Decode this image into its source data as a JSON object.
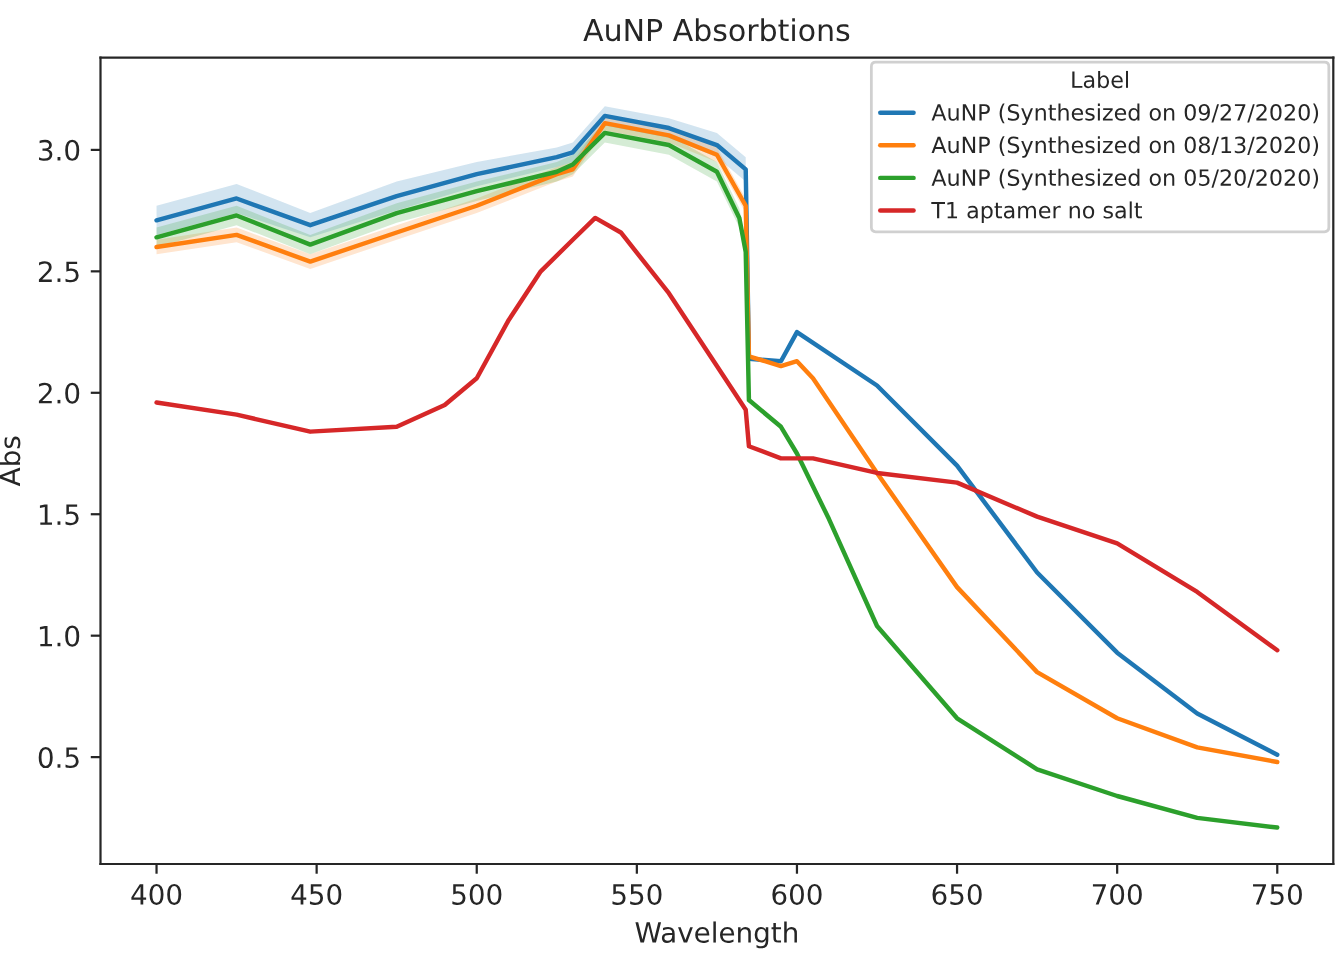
{
  "chart_data": {
    "type": "line",
    "title": "AuNP Absorbtions",
    "xlabel": "Wavelength",
    "ylabel": "Abs",
    "legend_title": "Label",
    "legend": "top right",
    "grid": false,
    "xlim": [
      382.5,
      767.5
    ],
    "xticks": [
      400,
      450,
      500,
      550,
      600,
      650,
      700,
      750
    ],
    "ylim": [
      0.06,
      3.38
    ],
    "yticks": [
      0.5,
      {
        "value": 1,
        "label": "1.0"
      },
      1.5,
      {
        "value": 2,
        "label": "2.0"
      },
      2.5,
      {
        "value": 3,
        "label": "3.0"
      }
    ],
    "series": [
      {
        "name": "AuNP (Synthesized on 09/27/2020)",
        "color": "#1f77b4",
        "x": [
          400,
          425,
          448,
          475,
          500,
          525,
          530,
          540,
          560,
          575,
          584,
          585,
          595,
          600,
          625,
          650,
          675,
          700,
          725,
          750
        ],
        "values": [
          2.71,
          2.8,
          2.69,
          2.81,
          2.9,
          2.97,
          2.99,
          3.14,
          3.09,
          3.02,
          2.92,
          2.14,
          2.13,
          2.25,
          2.03,
          1.7,
          1.26,
          0.93,
          0.68,
          0.51
        ],
        "lower": [
          2.65,
          2.74,
          2.64,
          2.75,
          2.85,
          2.93,
          2.95,
          3.1,
          3.05,
          2.97,
          2.87,
          null,
          null,
          null,
          null,
          null,
          null,
          null,
          null,
          null
        ],
        "upper": [
          2.77,
          2.86,
          2.74,
          2.87,
          2.95,
          3.01,
          3.03,
          3.18,
          3.13,
          3.07,
          2.97,
          null,
          null,
          null,
          null,
          null,
          null,
          null,
          null,
          null
        ]
      },
      {
        "name": "AuNP (Synthesized on 08/13/2020)",
        "color": "#ff7f0e",
        "x": [
          400,
          425,
          448,
          475,
          500,
          525,
          530,
          540,
          560,
          575,
          584,
          585,
          590,
          595,
          600,
          605,
          625,
          650,
          675,
          700,
          725,
          750
        ],
        "values": [
          2.6,
          2.65,
          2.54,
          2.66,
          2.77,
          2.9,
          2.92,
          3.11,
          3.06,
          2.98,
          2.77,
          2.15,
          2.13,
          2.11,
          2.13,
          2.06,
          1.67,
          1.2,
          0.85,
          0.66,
          0.54,
          0.48
        ],
        "lower": [
          2.57,
          2.62,
          2.51,
          2.63,
          2.74,
          2.87,
          2.89,
          3.08,
          3.03,
          2.95,
          2.74,
          null,
          null,
          null,
          null,
          null,
          null,
          null,
          null,
          null,
          null,
          null
        ],
        "upper": [
          2.63,
          2.68,
          2.57,
          2.69,
          2.8,
          2.93,
          2.95,
          3.14,
          3.09,
          3.01,
          2.8,
          null,
          null,
          null,
          null,
          null,
          null,
          null,
          null,
          null,
          null,
          null
        ]
      },
      {
        "name": "AuNP (Synthesized on 05/20/2020)",
        "color": "#2ca02c",
        "x": [
          400,
          425,
          448,
          475,
          500,
          525,
          530,
          540,
          560,
          575,
          582,
          584,
          585,
          595,
          600,
          610,
          625,
          650,
          675,
          700,
          725,
          750
        ],
        "values": [
          2.64,
          2.73,
          2.61,
          2.74,
          2.83,
          2.91,
          2.94,
          3.07,
          3.02,
          2.91,
          2.72,
          2.58,
          1.97,
          1.86,
          1.75,
          1.48,
          1.04,
          0.66,
          0.45,
          0.34,
          0.25,
          0.21
        ],
        "lower": [
          2.6,
          2.69,
          2.57,
          2.7,
          2.79,
          2.87,
          2.9,
          3.03,
          2.98,
          2.87,
          2.68,
          2.54,
          null,
          null,
          null,
          null,
          null,
          null,
          null,
          null,
          null,
          null
        ],
        "upper": [
          2.68,
          2.77,
          2.65,
          2.78,
          2.87,
          2.95,
          2.98,
          3.11,
          3.06,
          2.95,
          2.76,
          2.62,
          null,
          null,
          null,
          null,
          null,
          null,
          null,
          null,
          null,
          null
        ]
      },
      {
        "name": "T1 aptamer no salt",
        "color": "#d62728",
        "x": [
          400,
          425,
          448,
          475,
          490,
          500,
          510,
          520,
          530,
          537,
          545,
          560,
          575,
          584,
          585,
          595,
          605,
          625,
          650,
          675,
          700,
          725,
          750
        ],
        "values": [
          1.96,
          1.91,
          1.84,
          1.86,
          1.95,
          2.06,
          2.3,
          2.5,
          2.63,
          2.72,
          2.66,
          2.41,
          2.11,
          1.93,
          1.78,
          1.73,
          1.73,
          1.67,
          1.63,
          1.49,
          1.38,
          1.18,
          0.94
        ]
      }
    ]
  }
}
